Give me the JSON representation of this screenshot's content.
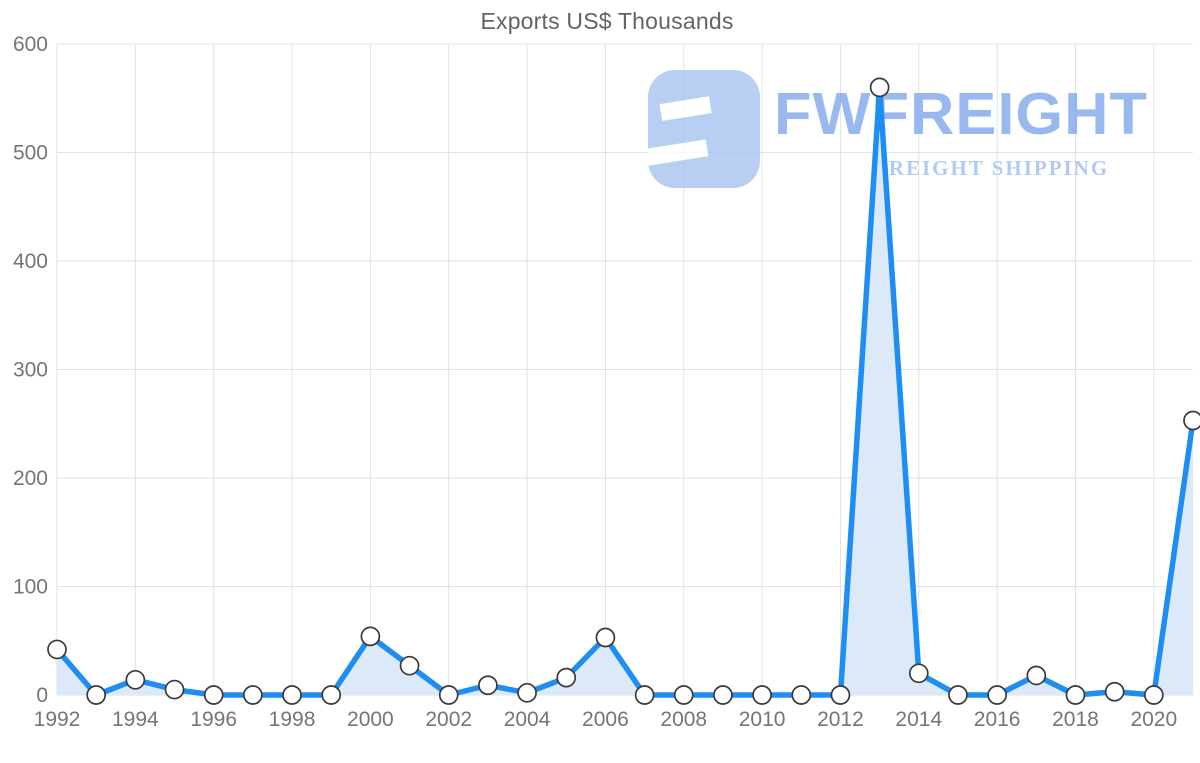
{
  "page": {
    "background": "#ffffff"
  },
  "chart_data": {
    "type": "area",
    "title": "Exports US$ Thousands",
    "xlabel": "",
    "ylabel": "",
    "x": [
      1992,
      1993,
      1994,
      1995,
      1996,
      1997,
      1998,
      1999,
      2000,
      2001,
      2002,
      2003,
      2004,
      2005,
      2006,
      2007,
      2008,
      2009,
      2010,
      2011,
      2012,
      2013,
      2014,
      2015,
      2016,
      2017,
      2018,
      2019,
      2020,
      2021
    ],
    "series": [
      {
        "name": "Exports US$ Thousands",
        "values": [
          42,
          0,
          14,
          5,
          0,
          0,
          0,
          0,
          54,
          27,
          0,
          9,
          2,
          16,
          53,
          0,
          0,
          0,
          0,
          0,
          0,
          560,
          20,
          0,
          0,
          18,
          0,
          3,
          0,
          253
        ]
      }
    ],
    "ylim": [
      0,
      600
    ],
    "y_ticks": [
      0,
      100,
      200,
      300,
      400,
      500,
      600
    ],
    "x_tick_labels": [
      "1992",
      "1994",
      "1996",
      "1998",
      "2000",
      "2002",
      "2004",
      "2006",
      "2008",
      "2010",
      "2012",
      "2014",
      "2016",
      "2018",
      "2020"
    ],
    "grid": true,
    "legend_position": "none",
    "marker_style": "open-circle",
    "colors": {
      "line": "#1e8ef2",
      "area_fill": "#dbe9f9",
      "grid": "#e2e2e2",
      "tick_label": "#757575",
      "title": "#636363",
      "marker_fill": "#ffffff",
      "marker_stroke": "#3a3a3a"
    }
  },
  "watermark": {
    "brand": "FWFREIGHT",
    "tagline": "FREIGHT SHIPPING",
    "icon": "fwfreight-logo-icon",
    "icon_color": "#a9c5f1",
    "brand_color": "#82a9ec",
    "tagline_color": "#9ec0f2"
  }
}
